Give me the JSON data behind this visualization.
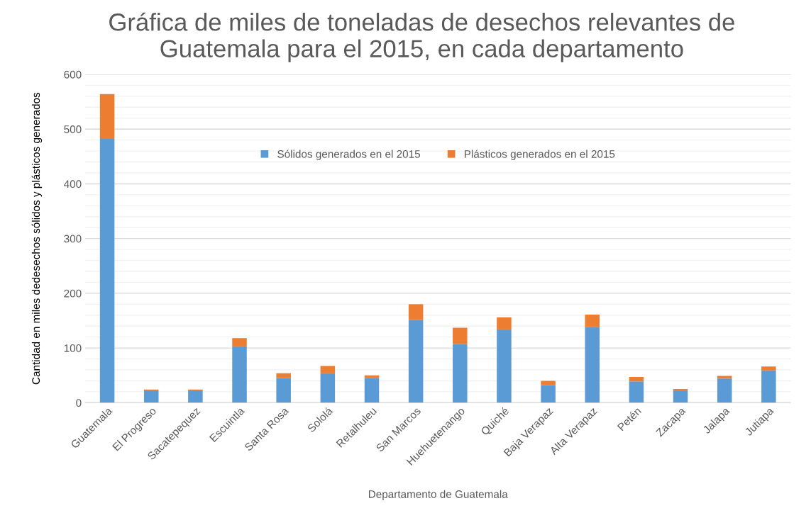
{
  "chart_data": {
    "type": "bar",
    "stacked": true,
    "title": "Gráfica de miles de toneladas de desechos relevantes de\nGuatemala para el 2015, en cada departamento",
    "xlabel": "Departamento de Guatemala",
    "ylabel": "Cantidad en miles dedesechos sólidos y plásticos generados",
    "categories": [
      "Guatemala",
      "El Progreso",
      "Sacatepequez",
      "Escuintla",
      "Santa Rosa",
      "Sololá",
      "Retalhuleu",
      "San Marcos",
      "Huehuetenango",
      "Quiché",
      "Baja Verapaz",
      "Alta Verapaz",
      "Petén",
      "Zacapa",
      "Jalapa",
      "Jutiapa"
    ],
    "series": [
      {
        "name": "Sólidos generados en el 2015",
        "color": "#5b9bd5",
        "values": [
          482,
          21,
          21,
          103,
          45,
          54,
          45,
          151,
          107,
          134,
          32,
          138,
          39,
          21,
          44,
          59
        ]
      },
      {
        "name": "Plásticos generados en el 2015",
        "color": "#ed7d31",
        "values": [
          82,
          3,
          3,
          15,
          9,
          13,
          5,
          29,
          30,
          22,
          8,
          23,
          8,
          4,
          5,
          7
        ]
      }
    ],
    "ylim": [
      0,
      600
    ],
    "yticks": [
      0,
      {
        "value": 20,
        "label": null
      },
      {
        "value": 40,
        "label": null
      },
      {
        "value": 60,
        "label": null
      },
      {
        "value": 80,
        "label": null
      },
      100,
      {
        "value": 120,
        "label": null
      },
      {
        "value": 140,
        "label": null
      },
      {
        "value": 160,
        "label": null
      },
      {
        "value": 180,
        "label": null
      },
      200,
      {
        "value": 220,
        "label": null
      },
      {
        "value": 240,
        "label": null
      },
      {
        "value": 260,
        "label": null
      },
      {
        "value": 280,
        "label": null
      },
      300,
      {
        "value": 320,
        "label": null
      },
      {
        "value": 340,
        "label": null
      },
      {
        "value": 360,
        "label": null
      },
      {
        "value": 380,
        "label": null
      },
      400,
      {
        "value": 420,
        "label": null
      },
      {
        "value": 440,
        "label": null
      },
      {
        "value": 460,
        "label": null
      },
      {
        "value": 480,
        "label": null
      },
      500,
      {
        "value": 520,
        "label": null
      },
      {
        "value": 540,
        "label": null
      },
      {
        "value": 560,
        "label": null
      },
      {
        "value": 580,
        "label": null
      },
      600
    ],
    "grid": "y",
    "legend": "top"
  }
}
